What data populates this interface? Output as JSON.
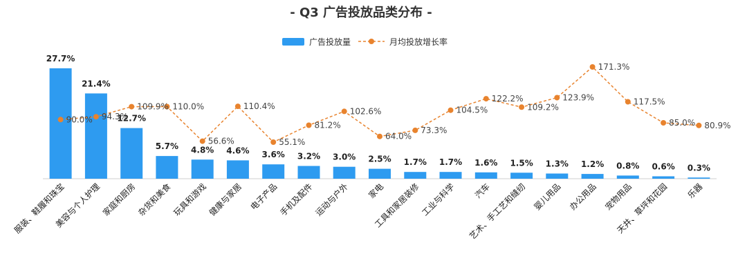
{
  "chart_data": {
    "type": "bar",
    "title": "- Q3 广告投放品类分布 -",
    "legend_position": "top-center",
    "grid": false,
    "categories": [
      "服装、鞋履和珠宝",
      "美容与个人护理",
      "家庭和厨房",
      "杂货和美食",
      "玩具和游戏",
      "健康与家居",
      "电子产品",
      "手机及配件",
      "运动与户外",
      "家电",
      "工具和家居装修",
      "工业与科学",
      "汽车",
      "艺术、手工艺和缝纫",
      "婴儿用品",
      "办公用品",
      "宠物用品",
      "天井、草坪和花园",
      "乐器"
    ],
    "series": [
      {
        "name": "广告投放量",
        "type": "bar",
        "color": "#2e9bf0",
        "values": [
          27.7,
          21.4,
          12.7,
          5.7,
          4.8,
          4.6,
          3.6,
          3.2,
          3.0,
          2.5,
          1.7,
          1.7,
          1.6,
          1.5,
          1.3,
          1.2,
          0.8,
          0.6,
          0.3
        ],
        "labels": [
          "27.7%",
          "21.4%",
          "12.7%",
          "5.7%",
          "4.8%",
          "4.6%",
          "3.6%",
          "3.2%",
          "3.0%",
          "2.5%",
          "1.7%",
          "1.7%",
          "1.6%",
          "1.5%",
          "1.3%",
          "1.2%",
          "0.8%",
          "0.6%",
          "0.3%"
        ]
      },
      {
        "name": "月均投放增长率",
        "type": "line",
        "style": "dashed",
        "color": "#e8832e",
        "values": [
          90.0,
          94.3,
          109.9,
          110.0,
          56.6,
          110.4,
          55.1,
          81.2,
          102.6,
          64.0,
          73.3,
          104.5,
          122.2,
          109.2,
          123.9,
          171.3,
          117.5,
          85.0,
          80.9
        ],
        "labels": [
          "90.0%",
          "94.3%",
          "109.9%",
          "110.0%",
          "56.6%",
          "110.4%",
          "55.1%",
          "81.2%",
          "102.6%",
          "64.0%",
          "73.3%",
          "104.5%",
          "122.2%",
          "109.2%",
          "123.9%",
          "171.3%",
          "117.5%",
          "85.0%",
          "80.9%"
        ]
      }
    ],
    "bar_ylim": [
      0,
      30
    ],
    "line_ylim": [
      -45,
      195
    ]
  }
}
